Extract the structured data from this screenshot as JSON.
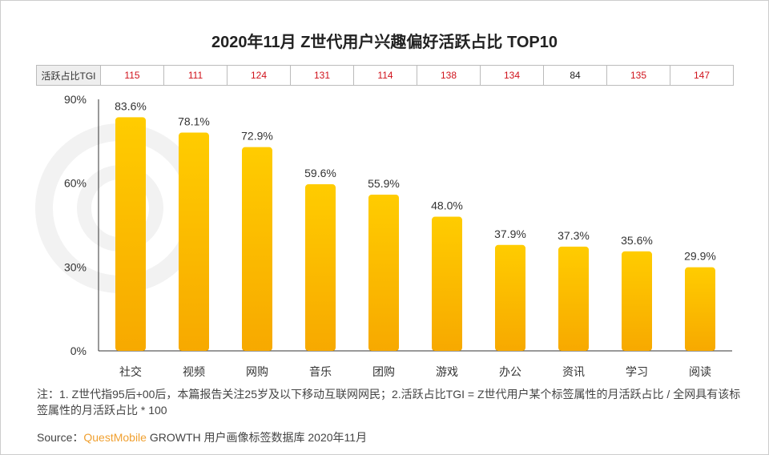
{
  "title": "2020年11月 Z世代用户兴趣偏好活跃占比 TOP10",
  "watermark": "QUESTMOBILE",
  "tgi_label": "活跃占比TGI",
  "tgi": [
    115,
    111,
    124,
    131,
    114,
    138,
    134,
    84,
    135,
    147
  ],
  "colors": {
    "tgi_high": "#d0121b",
    "tgi_low": "#222222",
    "bar_top": "#ffcc00",
    "bar_bottom": "#f7a900",
    "brand": "#f0a030"
  },
  "chart_data": {
    "type": "bar",
    "title": "2020年11月 Z世代用户兴趣偏好活跃占比 TOP10",
    "categories": [
      "社交",
      "视频",
      "网购",
      "音乐",
      "团购",
      "游戏",
      "办公",
      "资讯",
      "学习",
      "阅读"
    ],
    "values": [
      83.6,
      78.1,
      72.9,
      59.6,
      55.9,
      48.0,
      37.9,
      37.3,
      35.6,
      29.9
    ],
    "labels": [
      "83.6%",
      "78.1%",
      "72.9%",
      "59.6%",
      "55.9%",
      "48.0%",
      "37.9%",
      "37.3%",
      "35.6%",
      "29.9%"
    ],
    "ylim": [
      0,
      90
    ],
    "yticks": [
      "0%",
      "30%",
      "60%",
      "90%"
    ],
    "ytick_values": [
      0,
      30,
      60,
      90
    ],
    "grid": false
  },
  "note": "注：1. Z世代指95后+00后，本篇报告关注25岁及以下移动互联网网民；2.活跃占比TGI = Z世代用户某个标签属性的月活跃占比 / 全网具有该标签属性的月活跃占比 * 100",
  "source": {
    "prefix": "Source：",
    "brand": "QuestMobile",
    "rest": " GROWTH 用户画像标签数据库 2020年11月"
  }
}
